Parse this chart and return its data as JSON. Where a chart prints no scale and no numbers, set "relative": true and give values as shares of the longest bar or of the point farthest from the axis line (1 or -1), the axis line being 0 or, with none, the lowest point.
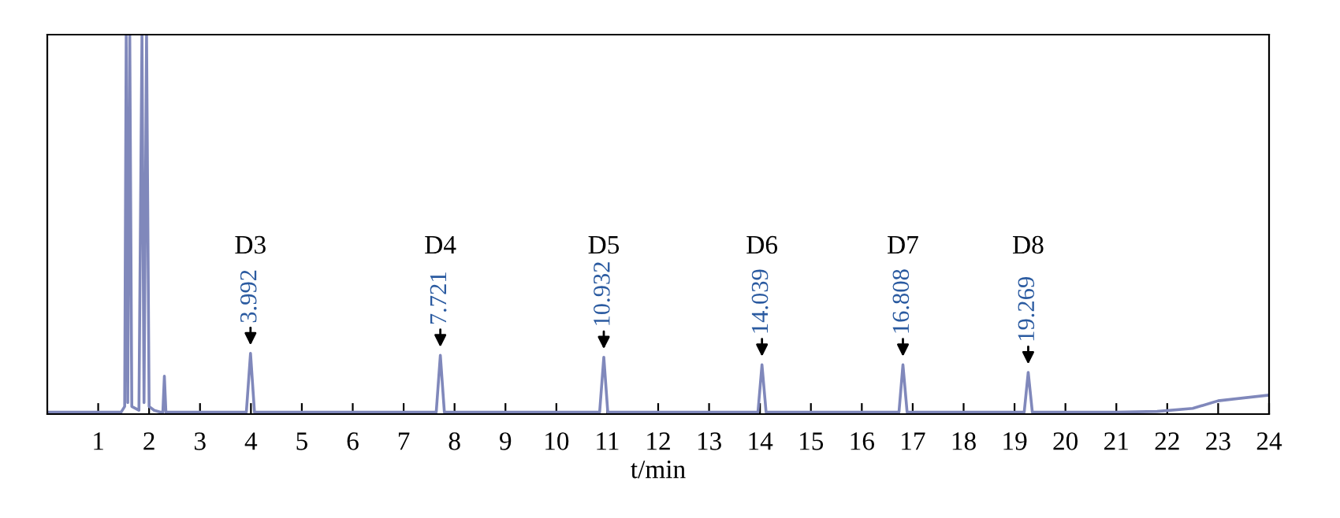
{
  "chart_data": {
    "type": "line",
    "relative": true,
    "xlabel": "t/min",
    "xlim": [
      0,
      24
    ],
    "xticks": [
      1,
      2,
      3,
      4,
      5,
      6,
      7,
      8,
      9,
      10,
      11,
      12,
      13,
      14,
      15,
      16,
      17,
      18,
      19,
      20,
      21,
      22,
      23,
      24
    ],
    "tick_labels": "x",
    "grid": false,
    "legend": false,
    "marker": "none",
    "line_style": "solid",
    "series": [
      {
        "color": "#8088bb",
        "x": [
          0,
          1.0,
          1.45,
          1.52,
          1.55,
          1.58,
          1.62,
          1.66,
          1.8,
          1.86,
          1.9,
          1.95,
          2.0,
          2.1,
          2.22,
          2.27,
          2.3,
          2.33,
          3.0,
          3.91,
          3.992,
          4.07,
          7.64,
          7.721,
          7.8,
          10.85,
          10.932,
          11.01,
          13.96,
          14.039,
          14.12,
          16.73,
          16.808,
          16.89,
          19.19,
          19.269,
          19.35,
          21.0,
          21.8,
          22.5,
          23.0,
          24
        ],
        "values": [
          0.005,
          0.005,
          0.005,
          0.02,
          1,
          0.03,
          1,
          0.02,
          0.01,
          1,
          0.03,
          1,
          0.02,
          0.01,
          0.005,
          0.005,
          0.1,
          0.005,
          0.005,
          0.005,
          0.16,
          0.005,
          0.005,
          0.155,
          0.005,
          0.005,
          0.15,
          0.005,
          0.005,
          0.13,
          0.005,
          0.005,
          0.13,
          0.005,
          0.005,
          0.11,
          0.005,
          0.005,
          0.007,
          0.015,
          0.035,
          0.05
        ]
      }
    ],
    "annotations": [
      "D3",
      {
        "text": "3.992",
        "x": 3.992,
        "y": 0.16
      },
      "D4",
      {
        "text": "7.721",
        "x": 7.721,
        "y": 0.155
      },
      "D5",
      {
        "text": "10.932",
        "x": 10.932,
        "y": 0.15
      },
      "D6",
      {
        "text": "14.039",
        "x": 14.039,
        "y": 0.13
      },
      "D7",
      {
        "text": "16.808",
        "x": 16.808,
        "y": 0.13
      },
      "D8",
      {
        "text": "19.269",
        "x": 19.269,
        "y": 0.11
      }
    ]
  }
}
